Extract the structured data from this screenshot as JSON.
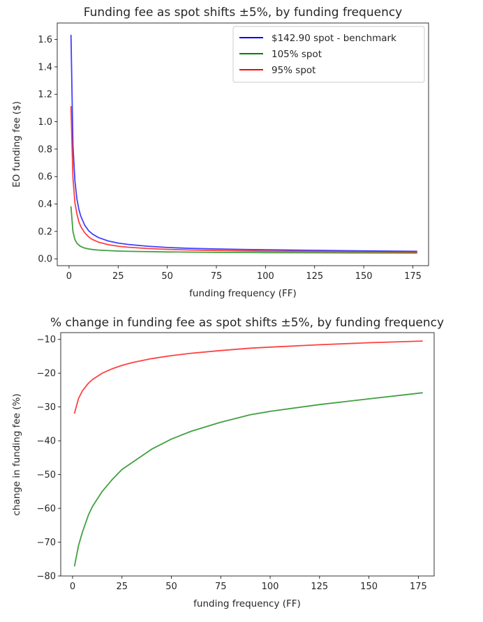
{
  "chart_data": [
    {
      "type": "line",
      "title": "Funding fee as spot shifts ±5%, by funding frequency",
      "xlabel": "funding frequency (FF)",
      "ylabel": "EO funding fee ($)",
      "xlim": [
        -6,
        183
      ],
      "ylim": [
        -0.05,
        1.72
      ],
      "xticks": [
        0,
        25,
        50,
        75,
        100,
        125,
        150,
        175
      ],
      "yticks": [
        0.0,
        0.2,
        0.4,
        0.6,
        0.8,
        1.0,
        1.2,
        1.4,
        1.6
      ],
      "ytick_labels": [
        "0.0",
        "0.2",
        "0.4",
        "0.6",
        "0.8",
        "1.0",
        "1.2",
        "1.4",
        "1.6"
      ],
      "legend_position": "upper right",
      "x": [
        1,
        2,
        3,
        4,
        5,
        6,
        8,
        10,
        12,
        15,
        20,
        25,
        30,
        40,
        50,
        60,
        75,
        90,
        100,
        125,
        150,
        177
      ],
      "series": [
        {
          "name": "$142.90 spot - benchmark",
          "color": "#0000ff",
          "values": [
            1.63,
            0.83,
            0.57,
            0.44,
            0.36,
            0.31,
            0.245,
            0.205,
            0.18,
            0.155,
            0.13,
            0.115,
            0.105,
            0.092,
            0.083,
            0.077,
            0.072,
            0.068,
            0.066,
            0.062,
            0.058,
            0.055
          ]
        },
        {
          "name": "105% spot",
          "color": "#008000",
          "values": [
            0.38,
            0.2,
            0.14,
            0.115,
            0.1,
            0.09,
            0.078,
            0.072,
            0.068,
            0.064,
            0.06,
            0.057,
            0.055,
            0.052,
            0.05,
            0.049,
            0.047,
            0.046,
            0.045,
            0.044,
            0.043,
            0.042
          ]
        },
        {
          "name": "95% spot",
          "color": "#ff0000",
          "values": [
            1.11,
            0.59,
            0.41,
            0.33,
            0.27,
            0.235,
            0.19,
            0.16,
            0.14,
            0.122,
            0.103,
            0.092,
            0.085,
            0.075,
            0.069,
            0.065,
            0.061,
            0.058,
            0.056,
            0.054,
            0.052,
            0.05
          ]
        }
      ]
    },
    {
      "type": "line",
      "title": "% change in funding fee as spot shifts ±5%, by funding frequency",
      "xlabel": "funding frequency (FF)",
      "ylabel": "change in funding fee (%)",
      "xlim": [
        -6,
        183
      ],
      "ylim": [
        -80,
        -8
      ],
      "xticks": [
        0,
        25,
        50,
        75,
        100,
        125,
        150,
        175
      ],
      "yticks": [
        -80,
        -70,
        -60,
        -50,
        -40,
        -30,
        -20,
        -10
      ],
      "ytick_labels": [
        "−80",
        "−70",
        "−60",
        "−50",
        "−40",
        "−30",
        "−20",
        "−10"
      ],
      "x": [
        1,
        3,
        5,
        8,
        10,
        15,
        20,
        25,
        30,
        40,
        50,
        60,
        75,
        90,
        100,
        125,
        150,
        177
      ],
      "series": [
        {
          "color": "#ff0000",
          "values": [
            -31.8,
            -27.5,
            -25.2,
            -23.0,
            -21.9,
            -20.0,
            -18.7,
            -17.7,
            -16.9,
            -15.7,
            -14.8,
            -14.1,
            -13.3,
            -12.6,
            -12.3,
            -11.6,
            -11.0,
            -10.5
          ]
        },
        {
          "color": "#008000",
          "values": [
            -77.0,
            -71.0,
            -67.0,
            -62.0,
            -59.5,
            -55.0,
            -51.5,
            -48.5,
            -46.5,
            -42.5,
            -39.5,
            -37.2,
            -34.5,
            -32.3,
            -31.3,
            -29.3,
            -27.6,
            -25.8
          ]
        }
      ]
    }
  ]
}
